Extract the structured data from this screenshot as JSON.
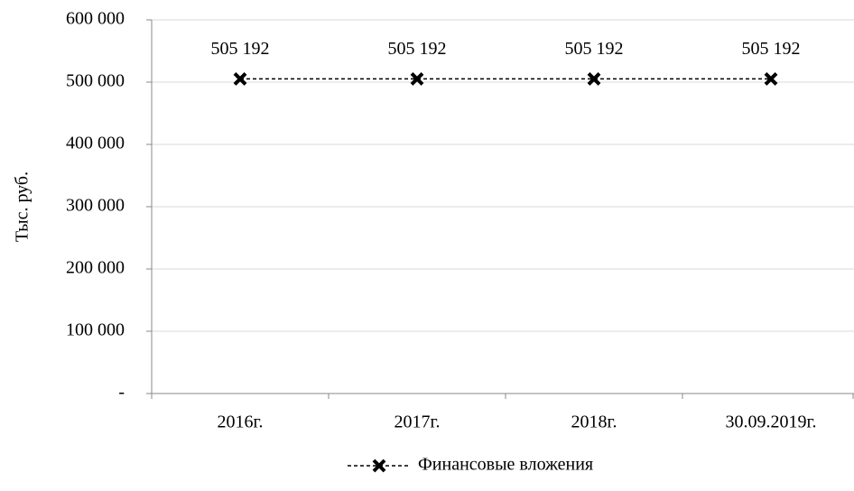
{
  "chart_data": {
    "type": "line",
    "y_label": "Тыс. руб.",
    "categories": [
      "2016г.",
      "2017г.",
      "2018г.",
      "30.09.2019г."
    ],
    "series": [
      {
        "name": "Финансовые вложения",
        "color": "#000000",
        "values": [
          505192,
          505192,
          505192,
          505192
        ],
        "value_labels": [
          "505 192",
          "505 192",
          "505 192",
          "505 192"
        ]
      }
    ],
    "ylim": [
      0,
      600000
    ],
    "yticks": [
      {
        "value": 0,
        "label": "-"
      },
      {
        "value": 100000,
        "label": "100 000"
      },
      {
        "value": 200000,
        "label": "200 000"
      },
      {
        "value": 300000,
        "label": "300 000"
      },
      {
        "value": 400000,
        "label": "400 000"
      },
      {
        "value": 500000,
        "label": "500 000"
      },
      {
        "value": 600000,
        "label": "600 000"
      }
    ],
    "grid": true,
    "legend": "bottom"
  }
}
